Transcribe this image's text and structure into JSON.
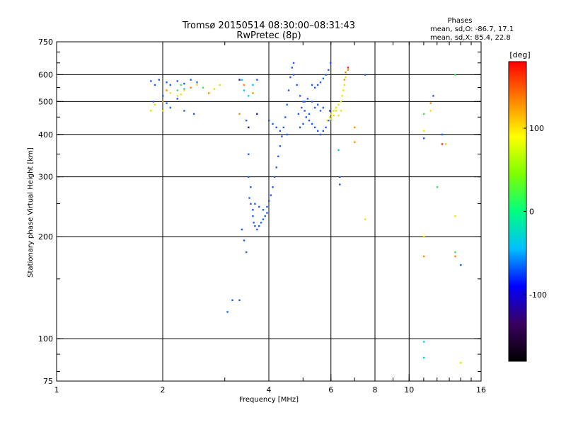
{
  "chart_data": {
    "type": "scatter",
    "title": "Tromsø 20150514 08:30:00–08:31:43",
    "subtitle": "RwPretec (8p)",
    "xlabel": "Frequency [MHz]",
    "ylabel": "Stationary phase Virtual Height [km]",
    "x_scale": "log",
    "y_scale": "log",
    "xlim": [
      1,
      16
    ],
    "ylim": [
      75,
      750
    ],
    "x_ticks": [
      1,
      2,
      4,
      6,
      8,
      10,
      16
    ],
    "x_tick_labels": [
      "1",
      "2",
      "4",
      "6",
      "8",
      "10",
      "16"
    ],
    "x_grid": [
      2,
      4,
      6,
      8,
      10
    ],
    "y_ticks": [
      75,
      100,
      200,
      300,
      400,
      500,
      600,
      750
    ],
    "y_tick_labels": [
      "75",
      "100",
      "200",
      "300",
      "400",
      "500",
      "600",
      "750"
    ],
    "y_grid": [
      100,
      200,
      300,
      400,
      500,
      600
    ],
    "grid": true,
    "legend_title": "Phases",
    "legend_lines": [
      "mean, sd,O: -86.7, 17.1",
      "mean, sd,X:  85.4, 22.8"
    ],
    "legend_position": "top-right",
    "colorbar": {
      "label": "[deg]",
      "min": -180,
      "max": 180,
      "ticks": [
        100,
        0,
        -100
      ],
      "tick_labels": [
        "100",
        "0",
        "-100"
      ],
      "colors": [
        "#000000",
        "#3b0060",
        "#0000ff",
        "#00bfff",
        "#00ff7f",
        "#7fff00",
        "#ffff00",
        "#ff8000",
        "#ff0000"
      ]
    },
    "series": [
      {
        "color": "#1e5aff",
        "points": [
          [
            1.85,
            575
          ],
          [
            1.9,
            560
          ],
          [
            1.95,
            580
          ],
          [
            2.05,
            570
          ],
          [
            2.1,
            560
          ],
          [
            2.2,
            575
          ],
          [
            2.3,
            565
          ],
          [
            2.4,
            580
          ],
          [
            2.5,
            570
          ],
          [
            1.88,
            500
          ],
          [
            2.0,
            520
          ],
          [
            2.05,
            495
          ],
          [
            2.1,
            480
          ],
          [
            2.2,
            510
          ],
          [
            2.3,
            470
          ],
          [
            2.45,
            460
          ],
          [
            3.05,
            120
          ],
          [
            3.15,
            130
          ],
          [
            3.3,
            130
          ],
          [
            3.35,
            210
          ],
          [
            3.4,
            195
          ],
          [
            3.45,
            180
          ],
          [
            3.5,
            350
          ],
          [
            3.5,
            300
          ],
          [
            3.55,
            280
          ],
          [
            3.52,
            260
          ],
          [
            3.55,
            250
          ],
          [
            3.6,
            240
          ],
          [
            3.6,
            230
          ],
          [
            3.62,
            220
          ],
          [
            3.65,
            215
          ],
          [
            3.7,
            210
          ],
          [
            3.75,
            215
          ],
          [
            3.8,
            220
          ],
          [
            3.85,
            225
          ],
          [
            3.9,
            230
          ],
          [
            3.95,
            235
          ],
          [
            3.65,
            250
          ],
          [
            3.75,
            245
          ],
          [
            3.85,
            240
          ],
          [
            3.95,
            245
          ],
          [
            4.0,
            255
          ],
          [
            4.05,
            265
          ],
          [
            4.1,
            280
          ],
          [
            4.15,
            300
          ],
          [
            4.2,
            320
          ],
          [
            4.25,
            345
          ],
          [
            4.3,
            370
          ],
          [
            4.35,
            395
          ],
          [
            4.4,
            420
          ],
          [
            4.45,
            450
          ],
          [
            4.5,
            490
          ],
          [
            4.55,
            540
          ],
          [
            4.6,
            590
          ],
          [
            4.65,
            630
          ],
          [
            4.7,
            650
          ],
          [
            4.0,
            440
          ],
          [
            4.1,
            430
          ],
          [
            4.2,
            420
          ],
          [
            4.3,
            410
          ],
          [
            4.5,
            400
          ],
          [
            4.7,
            600
          ],
          [
            4.8,
            560
          ],
          [
            4.9,
            520
          ],
          [
            5.0,
            500
          ],
          [
            5.05,
            470
          ],
          [
            5.1,
            450
          ],
          [
            5.2,
            440
          ],
          [
            5.3,
            430
          ],
          [
            5.4,
            420
          ],
          [
            5.5,
            410
          ],
          [
            5.6,
            400
          ],
          [
            5.7,
            410
          ],
          [
            5.8,
            420
          ],
          [
            5.9,
            440
          ],
          [
            5.95,
            470
          ],
          [
            4.85,
            460
          ],
          [
            4.95,
            480
          ],
          [
            5.05,
            500
          ],
          [
            5.15,
            510
          ],
          [
            5.3,
            500
          ],
          [
            5.5,
            490
          ],
          [
            5.7,
            480
          ],
          [
            5.3,
            560
          ],
          [
            5.4,
            550
          ],
          [
            5.5,
            560
          ],
          [
            5.6,
            570
          ],
          [
            5.7,
            585
          ],
          [
            5.8,
            600
          ],
          [
            5.9,
            620
          ],
          [
            5.98,
            650
          ],
          [
            4.9,
            420
          ],
          [
            5.0,
            430
          ],
          [
            5.2,
            460
          ],
          [
            5.4,
            480
          ],
          [
            5.6,
            470
          ],
          [
            3.7,
            580
          ],
          [
            3.45,
            440
          ],
          [
            6.35,
            300
          ],
          [
            6.35,
            285
          ],
          [
            7.5,
            600
          ],
          [
            11.0,
            390
          ],
          [
            11.7,
            520
          ],
          [
            12.4,
            400
          ],
          [
            14.0,
            165
          ]
        ]
      },
      {
        "color": "#00c8ff",
        "points": [
          [
            3.35,
            580
          ],
          [
            3.4,
            540
          ],
          [
            3.5,
            520
          ],
          [
            3.6,
            560
          ],
          [
            6.3,
            360
          ],
          [
            2.3,
            545
          ],
          [
            11.0,
            98
          ],
          [
            11.0,
            88
          ]
        ]
      },
      {
        "color": "#40e060",
        "points": [
          [
            2.2,
            540
          ],
          [
            2.25,
            560
          ],
          [
            2.6,
            550
          ],
          [
            11.0,
            460
          ],
          [
            12.0,
            280
          ],
          [
            13.5,
            600
          ],
          [
            13.5,
            180
          ]
        ]
      },
      {
        "color": "#e6e600",
        "points": [
          [
            1.85,
            470
          ],
          [
            1.9,
            490
          ],
          [
            2.0,
            470
          ],
          [
            2.1,
            530
          ],
          [
            2.2,
            520
          ],
          [
            2.25,
            525
          ],
          [
            2.3,
            540
          ],
          [
            2.5,
            560
          ],
          [
            2.8,
            545
          ],
          [
            2.9,
            560
          ],
          [
            5.85,
            440
          ],
          [
            5.95,
            450
          ],
          [
            6.0,
            460
          ],
          [
            6.1,
            470
          ],
          [
            6.2,
            480
          ],
          [
            6.3,
            490
          ],
          [
            6.4,
            500
          ],
          [
            6.45,
            520
          ],
          [
            6.5,
            540
          ],
          [
            6.55,
            560
          ],
          [
            6.6,
            590
          ],
          [
            6.2,
            470
          ],
          [
            6.3,
            455
          ],
          [
            6.0,
            445
          ],
          [
            6.1,
            455
          ],
          [
            6.4,
            470
          ],
          [
            7.5,
            225
          ],
          [
            11.0,
            410
          ],
          [
            11.0,
            200
          ],
          [
            11.5,
            470
          ],
          [
            12.7,
            375
          ],
          [
            13.5,
            230
          ],
          [
            14.0,
            85
          ]
        ]
      },
      {
        "color": "#ff8c00",
        "points": [
          [
            2.0,
            500
          ],
          [
            2.05,
            540
          ],
          [
            2.4,
            550
          ],
          [
            2.7,
            530
          ],
          [
            3.4,
            560
          ],
          [
            3.3,
            460
          ],
          [
            3.6,
            530
          ],
          [
            6.6,
            610
          ],
          [
            6.7,
            620
          ],
          [
            6.55,
            580
          ],
          [
            7.0,
            420
          ],
          [
            7.0,
            380
          ],
          [
            11.0,
            175
          ],
          [
            11.5,
            495
          ],
          [
            13.5,
            175
          ]
        ]
      },
      {
        "color": "#ff2020",
        "points": [
          [
            6.7,
            630
          ],
          [
            12.4,
            375
          ]
        ]
      },
      {
        "color": "#2a18a0",
        "points": [
          [
            3.3,
            580
          ],
          [
            3.5,
            420
          ],
          [
            3.7,
            460
          ]
        ]
      }
    ]
  }
}
